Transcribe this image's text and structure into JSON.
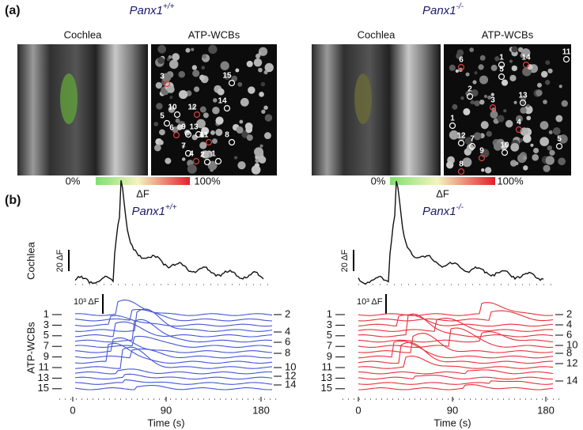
{
  "panel_a": {
    "label": "(a)",
    "colorbar_min": "0%",
    "colorbar_max": "100%",
    "colorbar_label": "ΔF",
    "left": {
      "genotype": "Panx1",
      "genotype_sup": "+/+",
      "image_titles": [
        "Cochlea",
        "ATP-WCBs"
      ],
      "cell_labels": [
        "3",
        "15",
        "14",
        "12",
        "10",
        "5",
        "6",
        "9",
        "13",
        "11",
        "8",
        "7",
        "4",
        "2",
        "1"
      ]
    },
    "right": {
      "genotype": "Panx1",
      "genotype_sup": "-/-",
      "image_titles": [
        "Cochlea",
        "ATP-WCBs"
      ],
      "cell_labels": [
        "6",
        "1",
        "5",
        "14",
        "11",
        "2",
        "3",
        "13",
        "1",
        "4",
        "12",
        "7",
        "9",
        "10",
        "5",
        "8"
      ]
    }
  },
  "panel_b": {
    "label": "(b)",
    "cochlea_label": "Cochlea",
    "wcb_label": "ATP-WCBs",
    "cochlea_scale": "20 ΔF",
    "wcb_scale": "10³ ΔF",
    "x_label": "Time (s)",
    "x_ticks": [
      "0",
      "90",
      "180"
    ],
    "left": {
      "genotype": "Panx1",
      "genotype_sup": "+/+",
      "left_trace_labels": [
        "1",
        "3",
        "5",
        "7",
        "9",
        "11",
        "13",
        "15"
      ],
      "right_trace_labels": [
        "2",
        "4",
        "6",
        "8",
        "10",
        "12",
        "14"
      ]
    },
    "right": {
      "genotype": "Panx1",
      "genotype_sup": "-/-",
      "left_trace_labels": [
        "1",
        "3",
        "5",
        "7",
        "9",
        "11",
        "13",
        "15"
      ],
      "right_trace_labels": [
        "2",
        "4",
        "6",
        "10",
        "8",
        "12",
        "14"
      ]
    }
  }
}
